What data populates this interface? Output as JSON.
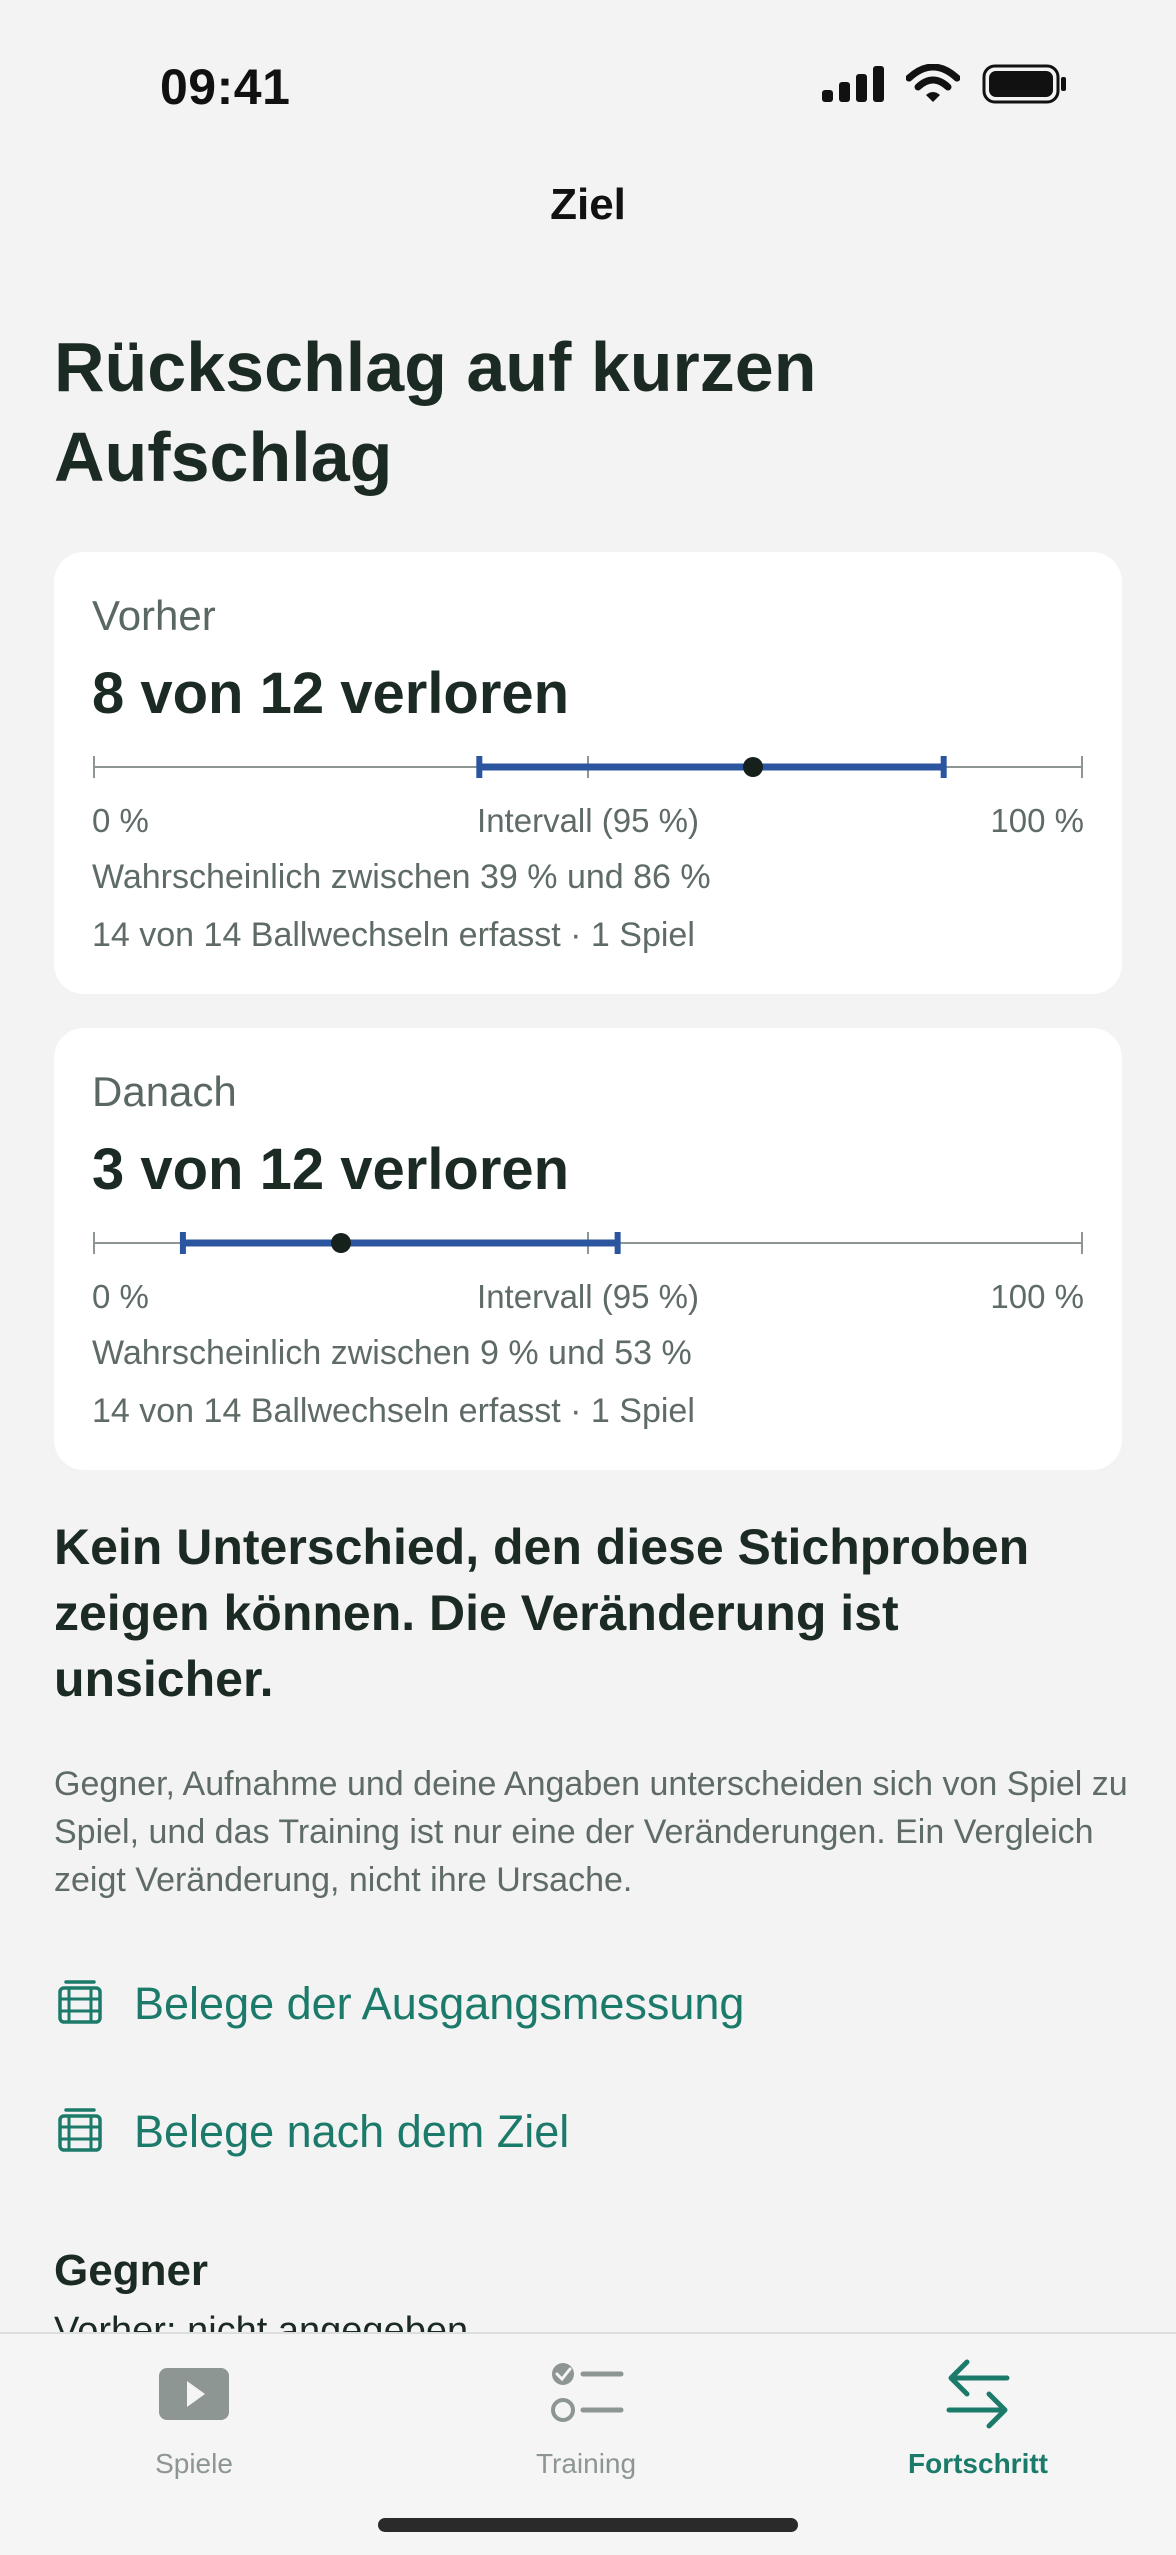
{
  "status_bar": {
    "time": "09:41"
  },
  "nav": {
    "title": "Ziel"
  },
  "page": {
    "title": "Rückschlag auf kurzen Aufschlag"
  },
  "cards": [
    {
      "label": "Vorher",
      "headline": "8 von 12 verloren",
      "estimate": 0.667,
      "ci_low": 0.39,
      "ci_high": 0.86,
      "scale_min": "0 %",
      "scale_mid": "Intervall (95 %)",
      "scale_max": "100 %",
      "ci_text": "Wahrscheinlich zwischen 39 % und 86 %",
      "sub": "14 von 14 Ballwechseln erfasst · 1 Spiel"
    },
    {
      "label": "Danach",
      "headline": "3 von 12 verloren",
      "estimate": 0.25,
      "ci_low": 0.09,
      "ci_high": 0.53,
      "scale_min": "0 %",
      "scale_mid": "Intervall (95 %)",
      "scale_max": "100 %",
      "ci_text": "Wahrscheinlich zwischen 9 % und 53 %",
      "sub": "14 von 14 Ballwechseln erfasst · 1 Spiel"
    }
  ],
  "conclusion": "Kein Unterschied, den diese Stichproben zeigen können. Die Veränderung ist unsicher.",
  "explanation": "Gegner, Aufnahme und deine Angaben unterscheiden sich von Spiel zu Spiel, und das Training ist nur eine der Veränderungen. Ein Vergleich zeigt Veränderung, nicht ihre Ursache.",
  "links": {
    "baseline": "Belege der Ausgangsmessung",
    "after": "Belege nach dem Ziel"
  },
  "opponent": {
    "heading": "Gegner",
    "before": "Vorher: nicht angegeben"
  },
  "tabs": {
    "games": "Spiele",
    "training": "Training",
    "progress": "Fortschritt"
  },
  "colors": {
    "accent": "#1b7a6a",
    "interval": "#2c55a0",
    "background": "#f2f3f2"
  },
  "icons": {
    "link": "film-strip-icon",
    "games": "play-icon",
    "training": "checklist-icon",
    "progress": "arrows-swap-icon"
  }
}
